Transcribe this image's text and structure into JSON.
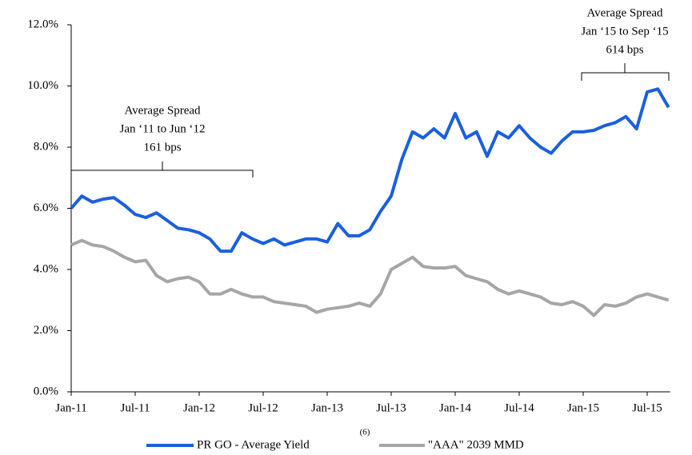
{
  "chart_data": {
    "type": "line",
    "categories": [
      "Jan-11",
      null,
      null,
      null,
      null,
      null,
      "Jul-11",
      null,
      null,
      null,
      null,
      null,
      "Jan-12",
      null,
      null,
      null,
      null,
      null,
      "Jul-12",
      null,
      null,
      null,
      null,
      null,
      "Jan-13",
      null,
      null,
      null,
      null,
      null,
      "Jul-13",
      null,
      null,
      null,
      null,
      null,
      "Jan-14",
      null,
      null,
      null,
      null,
      null,
      "Jul-14",
      null,
      null,
      null,
      null,
      null,
      "Jan-15",
      null,
      null,
      null,
      null,
      null,
      "Jul-15",
      null,
      null
    ],
    "series": [
      {
        "name": "PR GO - Average Yield",
        "color": "#1a5fe0",
        "values": [
          6.0,
          6.4,
          6.2,
          6.3,
          6.35,
          6.1,
          5.8,
          5.7,
          5.85,
          5.6,
          5.35,
          5.3,
          5.2,
          5.0,
          4.6,
          4.6,
          5.2,
          5.0,
          4.85,
          5.0,
          4.8,
          4.9,
          5.0,
          5.0,
          4.9,
          5.5,
          5.1,
          5.1,
          5.3,
          5.9,
          6.4,
          7.6,
          8.5,
          8.3,
          8.6,
          8.3,
          9.1,
          8.3,
          8.5,
          7.7,
          8.5,
          8.3,
          8.7,
          8.3,
          8.0,
          7.8,
          8.2,
          8.5,
          8.5,
          8.55,
          8.7,
          8.8,
          9.0,
          8.6,
          9.8,
          9.9,
          9.3
        ]
      },
      {
        "name": "\"AAA\" 2039 MMD",
        "color": "#a6a6a6",
        "values": [
          4.8,
          4.95,
          4.8,
          4.75,
          4.6,
          4.4,
          4.25,
          4.3,
          3.8,
          3.6,
          3.7,
          3.75,
          3.6,
          3.2,
          3.2,
          3.35,
          3.2,
          3.1,
          3.1,
          2.95,
          2.9,
          2.85,
          2.8,
          2.6,
          2.7,
          2.75,
          2.8,
          2.9,
          2.8,
          3.2,
          4.0,
          4.2,
          4.4,
          4.1,
          4.05,
          4.05,
          4.1,
          3.8,
          3.7,
          3.6,
          3.35,
          3.2,
          3.3,
          3.2,
          3.1,
          2.9,
          2.85,
          2.95,
          2.8,
          2.5,
          2.85,
          2.8,
          2.9,
          3.1,
          3.2,
          3.1,
          3.0
        ]
      }
    ],
    "legend_footnote": "(6)",
    "ylim": [
      0,
      12
    ],
    "yticks": [
      {
        "value": 0,
        "label": "0.0%"
      },
      {
        "value": 2,
        "label": "2.0%"
      },
      {
        "value": 4,
        "label": "4.0%"
      },
      {
        "value": 6,
        "label": "6.0%"
      },
      {
        "value": 8,
        "label": "8.0%"
      },
      {
        "value": 10,
        "label": "10.0%"
      },
      {
        "value": 12,
        "label": "12.0%"
      }
    ],
    "annotations": [
      {
        "lines": [
          "Average Spread",
          "Jan ‘11 to Jun ‘12",
          "161 bps"
        ]
      },
      {
        "lines": [
          "Average Spread",
          "Jan ‘15 to Sep ‘15",
          "614 bps"
        ]
      }
    ]
  }
}
